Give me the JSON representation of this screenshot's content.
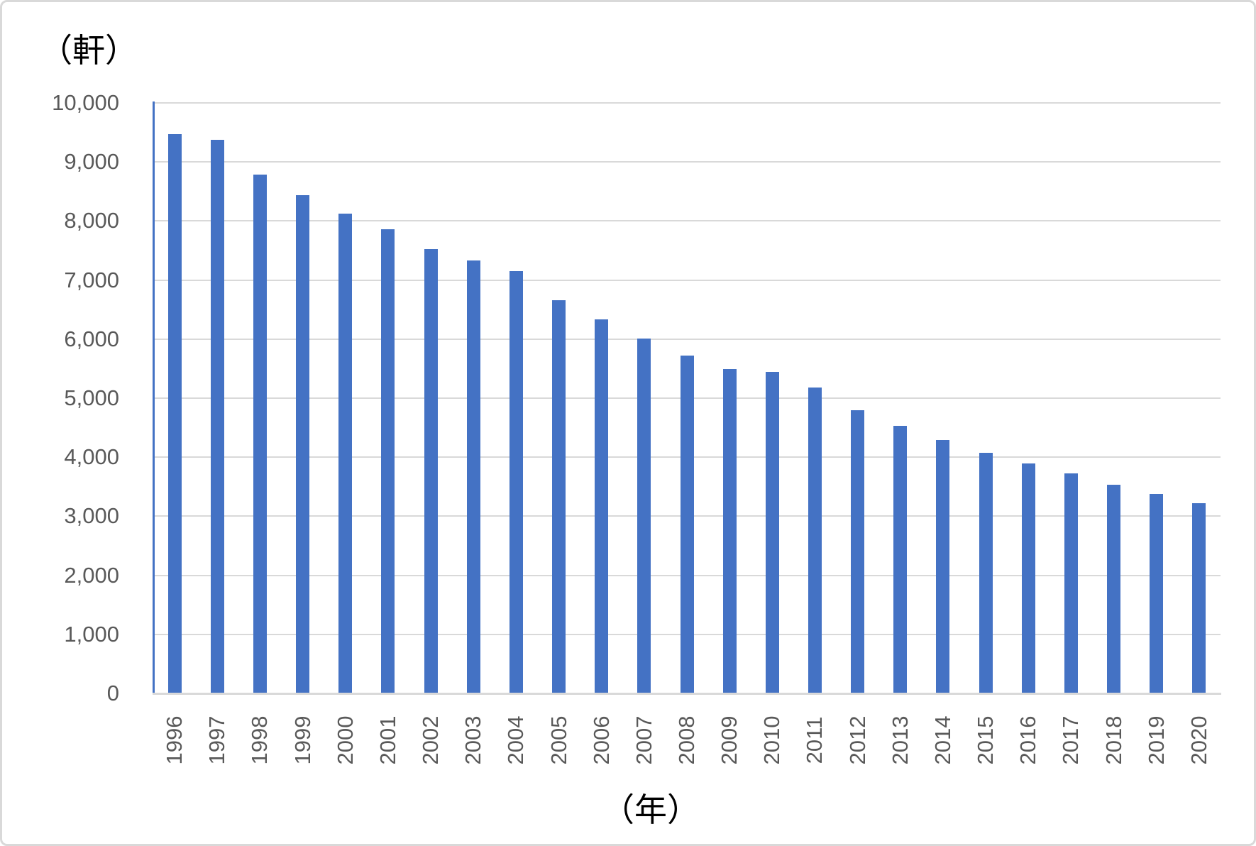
{
  "chart_data": {
    "type": "bar",
    "title": "",
    "ylabel": "（軒）",
    "xlabel": "（年）",
    "categories": [
      "1996",
      "1997",
      "1998",
      "1999",
      "2000",
      "2001",
      "2002",
      "2003",
      "2004",
      "2005",
      "2006",
      "2007",
      "2008",
      "2009",
      "2010",
      "2011",
      "2012",
      "2013",
      "2014",
      "2015",
      "2016",
      "2017",
      "2018",
      "2019",
      "2020"
    ],
    "values": [
      9470,
      9380,
      8790,
      8440,
      8130,
      7860,
      7520,
      7330,
      7150,
      6660,
      6330,
      6010,
      5720,
      5490,
      5440,
      5180,
      4800,
      4530,
      4290,
      4070,
      3890,
      3720,
      3530,
      3380,
      3220
    ],
    "ylim": [
      0,
      10000
    ],
    "ytick_step": 1000,
    "yticks": [
      "0",
      "1,000",
      "2,000",
      "3,000",
      "4,000",
      "5,000",
      "6,000",
      "7,000",
      "8,000",
      "9,000",
      "10,000"
    ],
    "grid": "horizontal",
    "legend": "none",
    "colors": {
      "bar": "#4472C4",
      "y_axis_line": "#4472C4",
      "x_axis_line": "#d9d9d9",
      "gridline": "#d9d9d9",
      "tick_label": "#595959",
      "axis_title": "#000000",
      "background": "#ffffff",
      "border": "#d9d9d9"
    }
  }
}
